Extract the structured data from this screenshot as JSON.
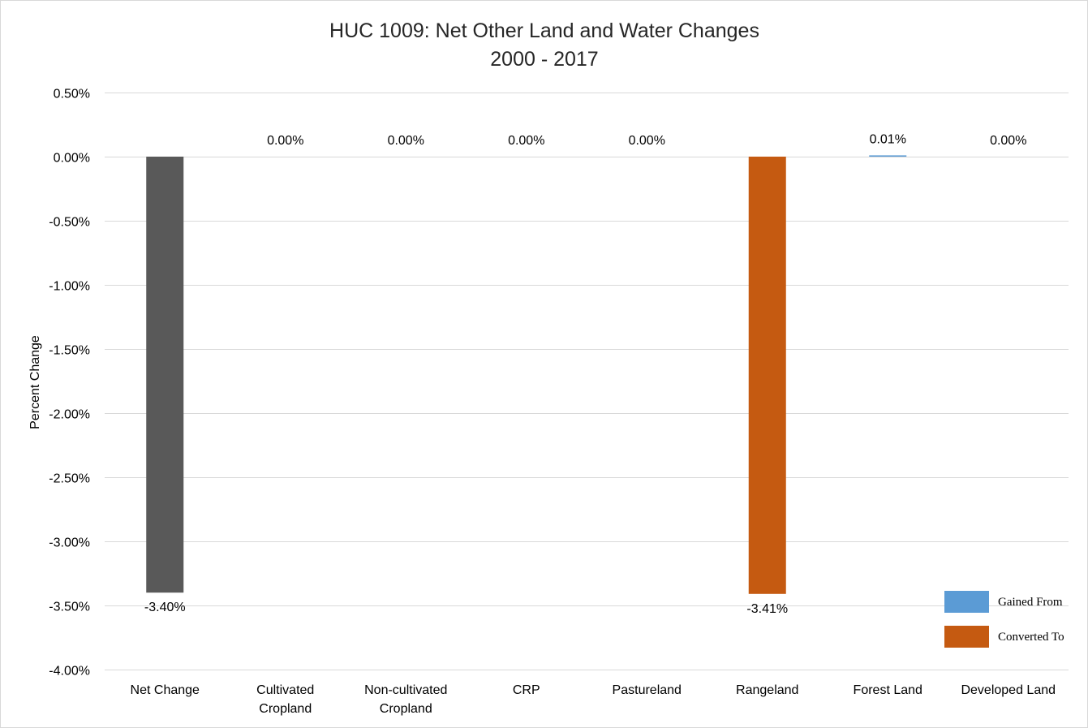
{
  "chart_data": {
    "type": "bar",
    "title": "HUC 1009: Net Other Land and Water Changes",
    "subtitle": "2000 - 2017",
    "ylabel": "Percent Change",
    "xlabel": "",
    "ylim": [
      -4.0,
      0.5
    ],
    "yticks": [
      0.5,
      0.0,
      -0.5,
      -1.0,
      -1.5,
      -2.0,
      -2.5,
      -3.0,
      -3.5,
      -4.0
    ],
    "ytick_labels": [
      "0.50%",
      "0.00%",
      "-0.50%",
      "-1.00%",
      "-1.50%",
      "-2.00%",
      "-2.50%",
      "-3.00%",
      "-3.50%",
      "-4.00%"
    ],
    "categories": [
      [
        "Net Change"
      ],
      [
        "Cultivated",
        "Cropland"
      ],
      [
        "Non-cultivated",
        "Cropland"
      ],
      [
        "CRP"
      ],
      [
        "Pastureland"
      ],
      [
        "Rangeland"
      ],
      [
        "Forest Land"
      ],
      [
        "Developed Land"
      ]
    ],
    "values": [
      -3.4,
      0.0,
      0.0,
      0.0,
      0.0,
      -3.41,
      0.01,
      0.0
    ],
    "data_labels": [
      "-3.40%",
      "0.00%",
      "0.00%",
      "0.00%",
      "0.00%",
      "-3.41%",
      "0.01%",
      "0.00%"
    ],
    "bar_colors": [
      "#595959",
      "#5b9bd5",
      "#5b9bd5",
      "#5b9bd5",
      "#5b9bd5",
      "#c55a11",
      "#5b9bd5",
      "#5b9bd5"
    ],
    "grid": true,
    "legend_position": "bottom-right",
    "legend": [
      {
        "label": "Gained From",
        "color": "#5b9bd5"
      },
      {
        "label": "Converted To",
        "color": "#c55a11"
      }
    ]
  }
}
